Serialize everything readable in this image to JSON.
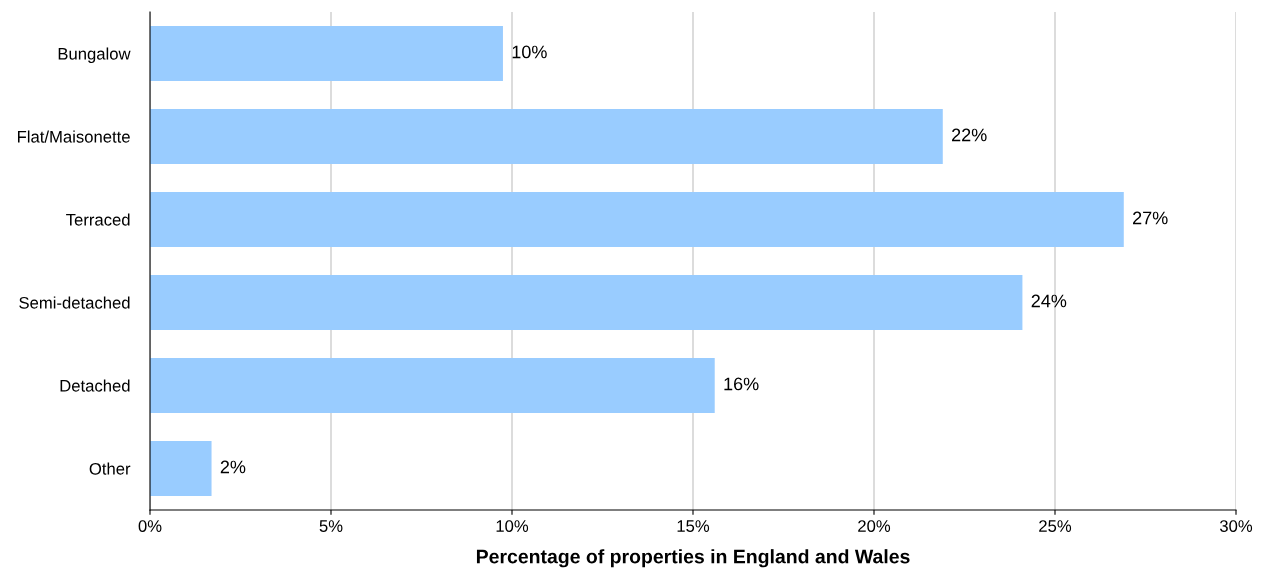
{
  "chart_data": {
    "type": "bar",
    "orientation": "horizontal",
    "xlabel": "Percentage of properties in England and Wales",
    "categories": [
      "Bungalow",
      "Flat/Maisonette",
      "Terraced",
      "Semi-detached",
      "Detached",
      "Other"
    ],
    "values": [
      9.75,
      21.9,
      26.9,
      24.1,
      15.6,
      1.7
    ],
    "value_labels": [
      "10%",
      "22%",
      "27%",
      "24%",
      "16%",
      "2%"
    ],
    "color": "#99ccff",
    "xlim": [
      0,
      30
    ],
    "xticks": [
      {
        "value": 0,
        "label": "0%"
      },
      {
        "value": 5,
        "label": "5%"
      },
      {
        "value": 10,
        "label": "10%"
      },
      {
        "value": 15,
        "label": "15%"
      },
      {
        "value": 20,
        "label": "20%"
      },
      {
        "value": 25,
        "label": "25%"
      },
      {
        "value": 30,
        "label": "30%"
      }
    ],
    "grid": "x",
    "legend": false
  }
}
